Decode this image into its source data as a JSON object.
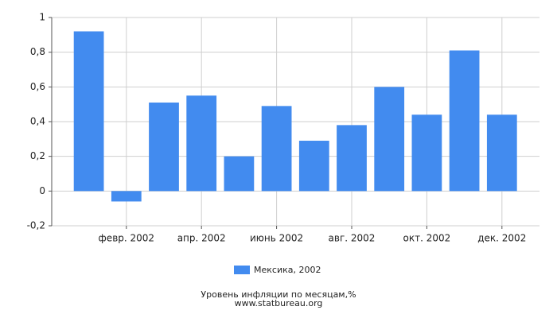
{
  "chart_data": {
    "type": "bar",
    "categories": [
      null,
      "февр. 2002",
      null,
      "апр. 2002",
      null,
      "июнь 2002",
      null,
      "авг. 2002",
      null,
      "окт. 2002",
      null,
      "дек. 2002"
    ],
    "series": [
      {
        "name": "Мексика, 2002",
        "color": "#428bef",
        "values": [
          0.92,
          -0.06,
          0.51,
          0.55,
          0.2,
          0.49,
          0.29,
          0.38,
          0.6,
          0.44,
          0.81,
          0.44
        ]
      }
    ],
    "ylim": [
      -0.2,
      1
    ],
    "yticks": [
      {
        "value": -0.2,
        "label": "-0,2"
      },
      0,
      {
        "value": 0.2,
        "label": "0,2"
      },
      {
        "value": 0.4,
        "label": "0,4"
      },
      {
        "value": 0.6,
        "label": "0,6"
      },
      {
        "value": 0.8,
        "label": "0,8"
      },
      1
    ],
    "grid": true,
    "legend": "bottom",
    "footer": [
      "Уровень инфляции по месяцам,%",
      "www.statbureau.org"
    ]
  }
}
